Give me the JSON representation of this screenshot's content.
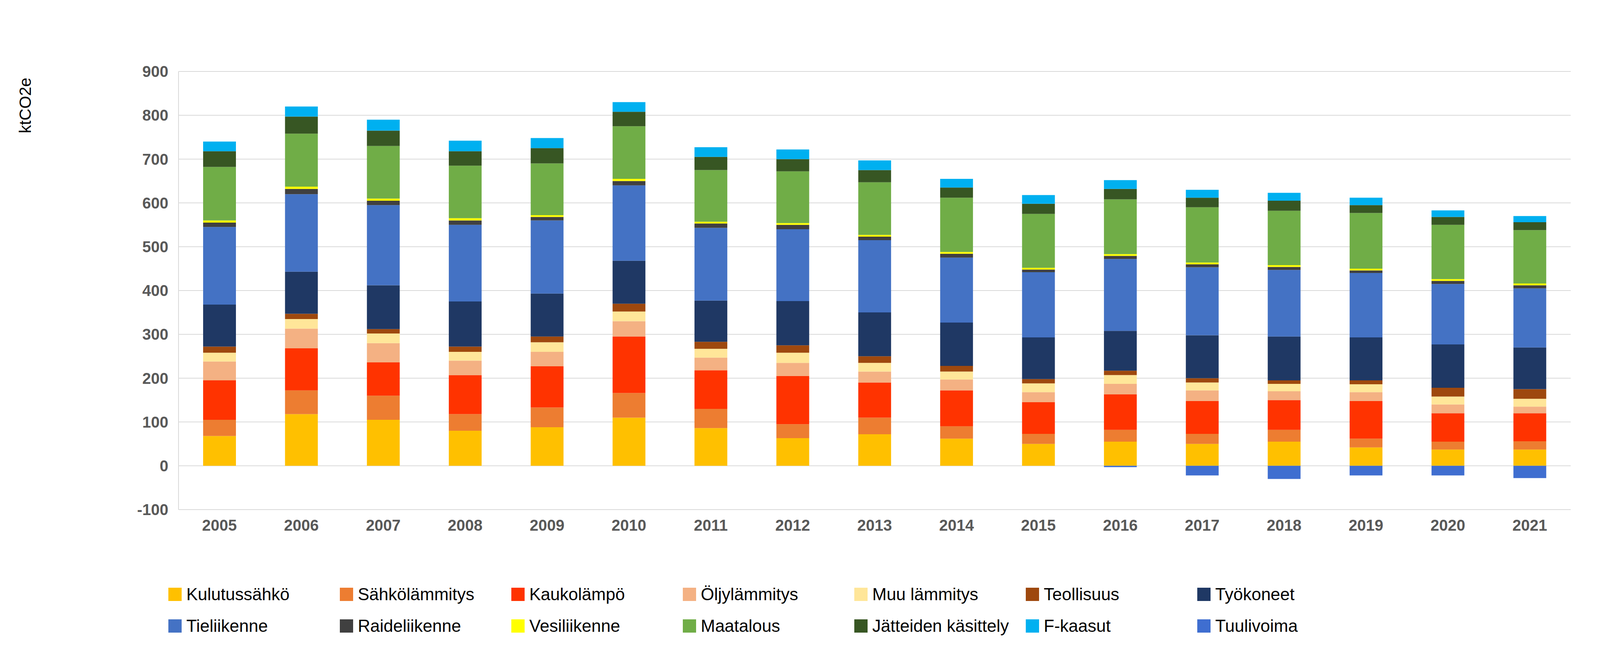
{
  "chart_data": {
    "type": "bar",
    "stacked": true,
    "grid": true,
    "legend": "bottom",
    "y_label": "ktCO2e",
    "categories": [
      "2005",
      "2006",
      "2007",
      "2008",
      "2009",
      "2010",
      "2011",
      "2012",
      "2013",
      "2014",
      "2015",
      "2016",
      "2017",
      "2018",
      "2019",
      "2020",
      "2021"
    ],
    "ylim": [
      -100,
      900
    ],
    "yticks": [
      -100,
      0,
      100,
      200,
      300,
      400,
      500,
      600,
      700,
      800,
      900
    ],
    "series": [
      {
        "name": "Kulutussähkö",
        "color": "#FFC000",
        "values": [
          68,
          118,
          105,
          80,
          88,
          110,
          86,
          63,
          72,
          62,
          50,
          55,
          50,
          55,
          42,
          37,
          37
        ]
      },
      {
        "name": "Sähkölämmitys",
        "color": "#ED7D31",
        "values": [
          37,
          54,
          55,
          38,
          45,
          56,
          44,
          32,
          38,
          28,
          23,
          27,
          23,
          27,
          20,
          18,
          19
        ]
      },
      {
        "name": "Kaukolämpö",
        "color": "#FF3300",
        "values": [
          90,
          96,
          76,
          89,
          94,
          129,
          88,
          110,
          80,
          82,
          72,
          81,
          75,
          68,
          86,
          65,
          64
        ]
      },
      {
        "name": "Öljylämmitys",
        "color": "#F4B183",
        "values": [
          43,
          45,
          44,
          33,
          33,
          35,
          29,
          30,
          25,
          25,
          23,
          24,
          24,
          20,
          20,
          20,
          15
        ]
      },
      {
        "name": "Muu lämmitys",
        "color": "#FFE699",
        "values": [
          20,
          22,
          22,
          20,
          22,
          22,
          20,
          23,
          20,
          18,
          20,
          20,
          18,
          17,
          18,
          18,
          18
        ]
      },
      {
        "name": "Teollisuus",
        "color": "#9E480E",
        "values": [
          14,
          12,
          10,
          12,
          13,
          18,
          16,
          17,
          15,
          13,
          10,
          10,
          10,
          8,
          9,
          20,
          22
        ]
      },
      {
        "name": "Työkoneet",
        "color": "#1F3864",
        "values": [
          96,
          96,
          100,
          103,
          98,
          98,
          94,
          101,
          100,
          99,
          95,
          91,
          98,
          100,
          98,
          99,
          95
        ]
      },
      {
        "name": "Tieliikenne",
        "color": "#4472C4",
        "values": [
          177,
          177,
          183,
          175,
          167,
          172,
          166,
          164,
          165,
          148,
          149,
          164,
          155,
          152,
          147,
          138,
          135
        ]
      },
      {
        "name": "Raideliikenne",
        "color": "#404040",
        "values": [
          10,
          12,
          10,
          10,
          8,
          10,
          10,
          10,
          8,
          9,
          6,
          7,
          7,
          7,
          6,
          7,
          7
        ]
      },
      {
        "name": "Vesiliikenne",
        "color": "#FFFF00",
        "values": [
          5,
          5,
          5,
          5,
          4,
          5,
          4,
          4,
          4,
          4,
          4,
          4,
          4,
          4,
          4,
          4,
          4
        ]
      },
      {
        "name": "Maatalous",
        "color": "#70AD47",
        "values": [
          122,
          121,
          120,
          120,
          118,
          120,
          118,
          118,
          120,
          124,
          123,
          125,
          126,
          124,
          127,
          124,
          122
        ]
      },
      {
        "name": "Jätteiden käsittely",
        "color": "#375623",
        "values": [
          36,
          39,
          35,
          33,
          35,
          33,
          30,
          28,
          28,
          23,
          23,
          24,
          22,
          23,
          18,
          18,
          18
        ]
      },
      {
        "name": "F-kaasut",
        "color": "#00B0F0",
        "values": [
          22,
          23,
          25,
          24,
          23,
          22,
          22,
          22,
          22,
          20,
          20,
          20,
          18,
          18,
          17,
          15,
          14
        ]
      },
      {
        "name": "Tuulivoima",
        "color": "#3F6ED0",
        "values": [
          0,
          0,
          0,
          0,
          0,
          0,
          0,
          0,
          0,
          0,
          0,
          -3,
          -22,
          -30,
          -22,
          -22,
          -28
        ]
      }
    ]
  }
}
